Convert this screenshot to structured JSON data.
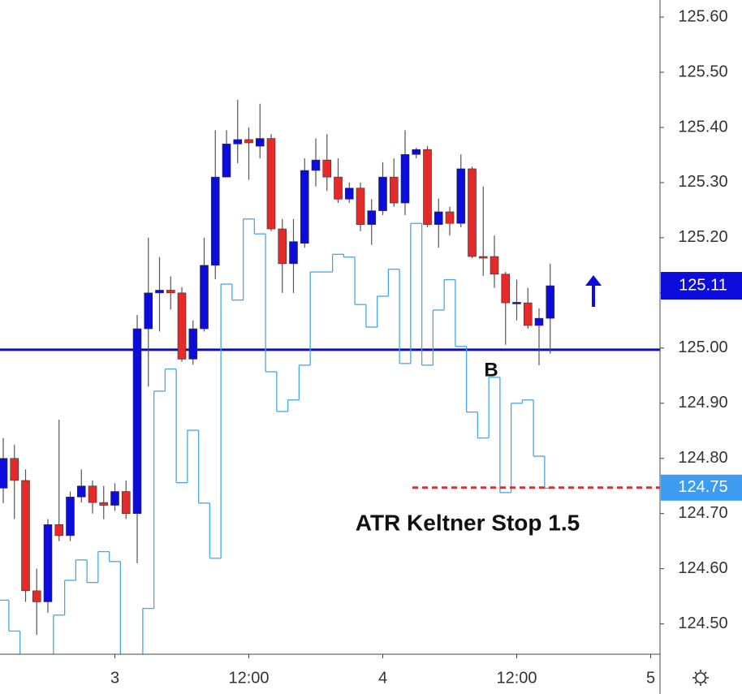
{
  "chart_data": {
    "type": "candlestick",
    "categories": [
      null,
      null,
      null,
      null,
      null,
      null,
      null,
      null,
      null,
      null,
      "3",
      null,
      null,
      null,
      null,
      null,
      null,
      null,
      null,
      null,
      null,
      null,
      "12:00",
      null,
      null,
      null,
      null,
      null,
      null,
      null,
      null,
      null,
      null,
      null,
      "4",
      null,
      null,
      null,
      null,
      null,
      null,
      null,
      null,
      null,
      null,
      null,
      "12:00",
      null,
      null,
      null,
      null,
      null,
      null,
      null,
      null,
      null,
      null,
      null,
      "5"
    ],
    "open": [
      124.746,
      124.8,
      124.76,
      124.56,
      124.54,
      124.68,
      124.66,
      124.73,
      124.75,
      124.72,
      124.715,
      124.74,
      124.7,
      125.035,
      125.1,
      125.105,
      125.1,
      124.98,
      125.035,
      125.15,
      125.31,
      125.37,
      125.378,
      125.366,
      125.38,
      125.216,
      125.153,
      125.19,
      125.322,
      125.341,
      125.31,
      125.27,
      125.29,
      125.224,
      125.249,
      125.31,
      125.263,
      125.351,
      125.36,
      125.224,
      125.247,
      125.226,
      125.325,
      125.166,
      125.166,
      125.134,
      125.082,
      125.082,
      125.041,
      125.054,
      null,
      null,
      null,
      null,
      null,
      null,
      null,
      null,
      null
    ],
    "high": [
      124.837,
      124.825,
      124.78,
      124.6,
      124.69,
      124.87,
      124.74,
      124.78,
      124.76,
      124.75,
      124.755,
      124.76,
      125.06,
      125.2,
      125.165,
      125.13,
      125.11,
      125.05,
      125.2,
      125.395,
      125.395,
      125.45,
      125.4,
      125.443,
      125.388,
      125.234,
      125.234,
      125.344,
      125.38,
      125.388,
      125.344,
      125.3,
      125.3,
      125.27,
      125.337,
      125.344,
      125.395,
      125.363,
      125.366,
      125.271,
      125.256,
      125.351,
      125.329,
      125.293,
      125.204,
      125.138,
      125.124,
      125.109,
      125.072,
      125.153,
      null,
      null,
      null,
      null,
      null,
      null,
      null,
      null,
      null
    ],
    "low": [
      124.719,
      124.69,
      124.54,
      124.48,
      124.52,
      124.65,
      124.65,
      124.72,
      124.7,
      124.69,
      124.705,
      124.69,
      124.61,
      124.93,
      125.03,
      125.07,
      124.975,
      124.97,
      125.03,
      125.125,
      125.31,
      125.335,
      125.305,
      125.344,
      125.212,
      125.1,
      125.1,
      125.182,
      125.293,
      125.285,
      125.263,
      125.263,
      125.212,
      125.187,
      125.241,
      125.256,
      125.241,
      125.344,
      125.219,
      125.182,
      125.204,
      125.219,
      125.163,
      125.131,
      125.109,
      125.006,
      125.05,
      125.035,
      124.969,
      124.99,
      null,
      null,
      null,
      null,
      null,
      null,
      null,
      null,
      null
    ],
    "close": [
      124.8,
      124.76,
      124.56,
      124.54,
      124.68,
      124.66,
      124.73,
      124.75,
      124.72,
      124.715,
      124.74,
      124.7,
      125.035,
      125.1,
      125.105,
      125.1,
      124.98,
      125.035,
      125.15,
      125.31,
      125.37,
      125.378,
      125.372,
      125.38,
      125.216,
      125.153,
      125.193,
      125.322,
      125.341,
      125.31,
      125.27,
      125.29,
      125.224,
      125.249,
      125.31,
      125.263,
      125.351,
      125.36,
      125.224,
      125.247,
      125.226,
      125.325,
      125.166,
      125.165,
      125.134,
      125.082,
      125.083,
      125.041,
      125.054,
      125.113,
      null,
      null,
      null,
      null,
      null,
      null,
      null,
      null,
      null
    ],
    "up_color": "#0c0cdc",
    "down_color": "#e62a2a",
    "wick_color": "#555555",
    "stop_line": {
      "color": "#4aa6e0",
      "values": [
        124.543,
        124.487,
        124.44,
        124.44,
        124.44,
        124.516,
        124.579,
        124.616,
        124.575,
        124.631,
        124.613,
        124.43,
        124.43,
        124.528,
        124.922,
        124.962,
        124.756,
        124.851,
        124.719,
        124.619,
        125.116,
        125.087,
        125.234,
        125.207,
        124.957,
        124.885,
        124.906,
        124.969,
        125.138,
        125.138,
        125.17,
        125.165,
        125.079,
        125.038,
        125.094,
        125.143,
        124.972,
        125.226,
        124.969,
        125.069,
        125.124,
        125.003,
        124.884,
        124.837,
        124.947,
        124.738,
        124.9,
        124.906,
        124.804,
        124.746,
        null,
        null,
        null,
        null,
        null,
        null,
        null,
        null,
        null
      ]
    },
    "hline": {
      "value": 124.997,
      "color": "#0c0cbe"
    },
    "last_price": {
      "value": 125.113,
      "label": "125.11",
      "color": "#0c0cdc"
    },
    "stop_price": {
      "value": 124.747,
      "label": "124.75",
      "color": "#3d9bf0",
      "line_color": "#e62a2a"
    },
    "annotations": [
      "B",
      "ATR Keltner Stop 1.5"
    ],
    "ylim": [
      124.445,
      125.631
    ],
    "yticks": [
      {
        "value": 124.5,
        "label": "124.50"
      },
      {
        "value": 124.6,
        "label": "124.60"
      },
      {
        "value": 124.7,
        "label": "124.70"
      },
      {
        "value": 124.8,
        "label": "124.80"
      },
      {
        "value": 124.9,
        "label": "124.90"
      },
      {
        "value": 125.0,
        "label": "125.00"
      },
      {
        "value": 125.1,
        "label": "125.10"
      },
      {
        "value": 125.2,
        "label": "125.20"
      },
      {
        "value": 125.3,
        "label": "125.30"
      },
      {
        "value": 125.4,
        "label": "125.40"
      },
      {
        "value": 125.5,
        "label": "125.50"
      },
      {
        "value": 125.6,
        "label": "125.60"
      }
    ]
  }
}
